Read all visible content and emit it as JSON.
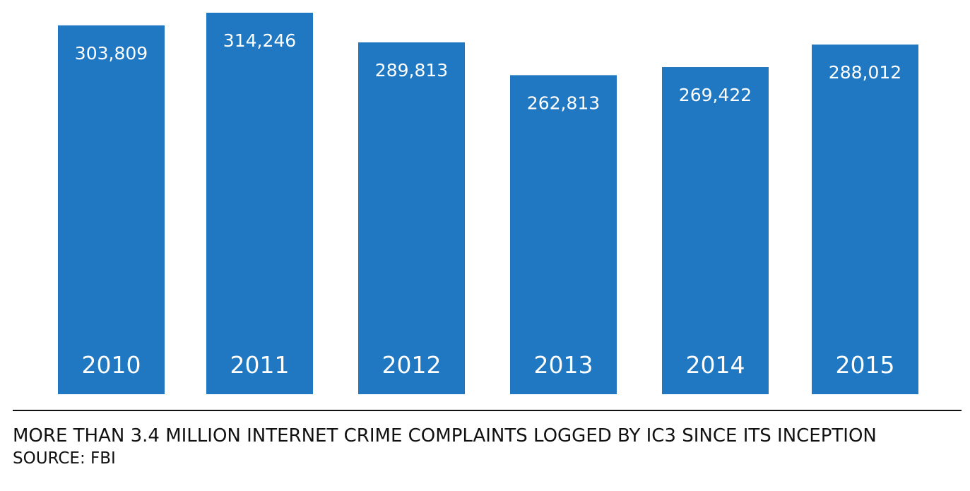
{
  "chart_data": {
    "type": "bar",
    "categories": [
      "2010",
      "2011",
      "2012",
      "2013",
      "2014",
      "2015"
    ],
    "values": [
      303809,
      314246,
      289813,
      262813,
      269422,
      288012
    ],
    "value_labels": [
      "303,809",
      "314,246",
      "289,813",
      "262,813",
      "269,422",
      "288,012"
    ],
    "title": "",
    "xlabel": "",
    "ylabel": "",
    "ylim": [
      0,
      314246
    ],
    "grid": false,
    "legend": "none",
    "bar_color": "#1f78c1",
    "label_color": "#ffffff"
  },
  "caption": {
    "headline": "MORE THAN 3.4 MILLION INTERNET CRIME COMPLAINTS LOGGED BY IC3 SINCE ITS INCEPTION",
    "source": "SOURCE: FBI"
  }
}
